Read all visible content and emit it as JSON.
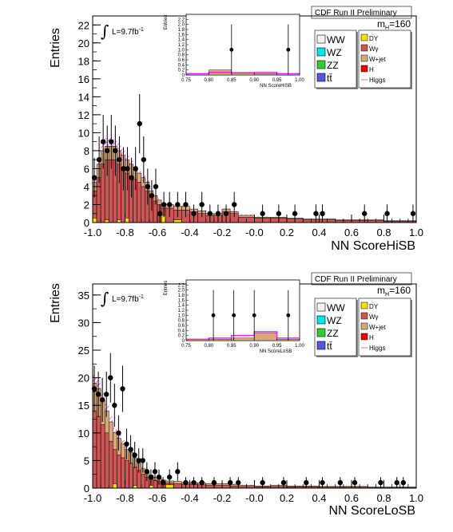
{
  "chart_data": [
    {
      "type": "bar",
      "header": "CDF Run II Preliminary",
      "mass_label": "m_H=160",
      "lumi_label": "L=9.7fb",
      "lumi_exp": "-1",
      "xlabel": "NN ScoreHiSB",
      "ylabel": "Entries",
      "xlim": [
        -1.0,
        1.0
      ],
      "ylim": [
        0,
        23
      ],
      "yticks": [
        0,
        2,
        4,
        6,
        8,
        10,
        12,
        14,
        16,
        18,
        20,
        22
      ],
      "xticks": [
        "-1.0",
        "-0.8",
        "-0.6",
        "-0.4",
        "-0.2",
        "-0.0",
        "0.2",
        "0.4",
        "0.6",
        "0.8",
        "1.0"
      ],
      "bin_edges": [
        -1.0,
        -0.975,
        -0.95,
        -0.925,
        -0.9,
        -0.875,
        -0.85,
        -0.825,
        -0.8,
        -0.775,
        -0.75,
        -0.725,
        -0.7,
        -0.675,
        -0.65,
        -0.625,
        -0.6,
        -0.575,
        -0.55,
        -0.5,
        -0.45,
        -0.4,
        -0.35,
        -0.3,
        -0.25,
        -0.2,
        -0.15,
        -0.1,
        0.0,
        0.1,
        0.2,
        0.3,
        0.4,
        0.5,
        0.6,
        0.7,
        0.8,
        0.9,
        1.0
      ],
      "bkg_total": [
        4.5,
        6.5,
        8.0,
        8.5,
        8.5,
        8.5,
        8.0,
        7.5,
        7.0,
        6.5,
        6.0,
        5.5,
        5.0,
        4.5,
        3.5,
        3.0,
        2.5,
        2.0,
        2.0,
        1.8,
        1.8,
        1.5,
        1.3,
        1.0,
        1.0,
        1.5,
        1.2,
        0.8,
        0.6,
        0.6,
        0.5,
        0.4,
        0.4,
        0.3,
        0.3,
        0.3,
        0.2,
        0.2
      ],
      "wgamma": [
        3.5,
        5.0,
        6.5,
        7.0,
        7.0,
        7.0,
        6.5,
        6.0,
        5.5,
        5.0,
        4.8,
        4.5,
        4.0,
        3.5,
        2.8,
        2.4,
        2.0,
        1.6,
        1.6,
        1.4,
        1.4,
        1.2,
        1.0,
        0.8,
        0.8,
        1.2,
        1.0,
        0.6,
        0.5,
        0.5,
        0.4,
        0.3,
        0.3,
        0.25,
        0.25,
        0.25,
        0.15,
        0.15
      ],
      "dy": [
        0.5,
        0.0,
        0.0,
        0.3,
        0.0,
        0.0,
        0.3,
        0.0,
        0.5,
        0.0,
        0.0,
        0.0,
        0.0,
        0.0,
        0.0,
        0.0,
        0.0,
        0.8,
        0.0,
        0.3,
        0.0,
        0.0,
        0.0,
        0.0,
        0.0,
        0.0,
        0.0,
        0.0,
        0.0,
        0.0,
        0.0,
        0.0,
        0.0,
        0.0,
        0.0,
        0.0,
        0.0,
        0.0
      ],
      "higgs": [
        5.2,
        7.3,
        8.9,
        9.4,
        9.4,
        9.3,
        8.8,
        8.2,
        7.6,
        7.0,
        6.4,
        5.9,
        5.3,
        4.8,
        3.8,
        3.2,
        2.7,
        2.2,
        2.1,
        1.9,
        1.9,
        1.6,
        1.4,
        1.1,
        1.1,
        1.6,
        1.3,
        0.9,
        0.7,
        0.6,
        0.5,
        0.4,
        0.4,
        0.3,
        0.3,
        0.3,
        0.2,
        0.2
      ],
      "data_points": [
        {
          "x": -0.99,
          "y": 5,
          "err": 2.2
        },
        {
          "x": -0.96,
          "y": 7,
          "err": 2.6
        },
        {
          "x": -0.935,
          "y": 9,
          "err": 3.0
        },
        {
          "x": -0.91,
          "y": 8,
          "err": 2.8
        },
        {
          "x": -0.885,
          "y": 9,
          "err": 3.0
        },
        {
          "x": -0.86,
          "y": 8,
          "err": 2.8
        },
        {
          "x": -0.835,
          "y": 7,
          "err": 2.6
        },
        {
          "x": -0.81,
          "y": 6,
          "err": 2.4
        },
        {
          "x": -0.785,
          "y": 6,
          "err": 2.4
        },
        {
          "x": -0.76,
          "y": 5,
          "err": 2.2
        },
        {
          "x": -0.735,
          "y": 6,
          "err": 2.4
        },
        {
          "x": -0.71,
          "y": 11,
          "err": 3.3
        },
        {
          "x": -0.685,
          "y": 7,
          "err": 2.6
        },
        {
          "x": -0.66,
          "y": 4,
          "err": 2.0
        },
        {
          "x": -0.635,
          "y": 3,
          "err": 1.7
        },
        {
          "x": -0.61,
          "y": 4,
          "err": 2.0
        },
        {
          "x": -0.585,
          "y": 1,
          "err": 1.0
        },
        {
          "x": -0.56,
          "y": 2,
          "err": 1.4
        },
        {
          "x": -0.525,
          "y": 2,
          "err": 1.4
        },
        {
          "x": -0.475,
          "y": 2,
          "err": 1.4
        },
        {
          "x": -0.425,
          "y": 2,
          "err": 1.4
        },
        {
          "x": -0.375,
          "y": 1,
          "err": 1.0
        },
        {
          "x": -0.325,
          "y": 2,
          "err": 1.4
        },
        {
          "x": -0.275,
          "y": 1,
          "err": 1.0
        },
        {
          "x": -0.225,
          "y": 1,
          "err": 1.0
        },
        {
          "x": -0.175,
          "y": 1,
          "err": 1.0
        },
        {
          "x": -0.125,
          "y": 2,
          "err": 1.4
        },
        {
          "x": 0.05,
          "y": 1,
          "err": 1.0
        },
        {
          "x": 0.15,
          "y": 1,
          "err": 1.0
        },
        {
          "x": 0.25,
          "y": 1,
          "err": 1.0
        },
        {
          "x": 0.38,
          "y": 1,
          "err": 1.0
        },
        {
          "x": 0.42,
          "y": 1,
          "err": 1.0
        },
        {
          "x": 0.68,
          "y": 1,
          "err": 1.0
        },
        {
          "x": 0.82,
          "y": 1,
          "err": 1.0
        },
        {
          "x": 0.98,
          "y": 1,
          "err": 1.0
        }
      ],
      "inset": {
        "xlabel": "NN ScoreHiSB",
        "ylabel": "Entries",
        "xlim": [
          0.75,
          1.0
        ],
        "ylim": [
          0,
          2.4
        ],
        "xticks": [
          "0.75",
          "0.80",
          "0.85",
          "0.90",
          "0.95",
          "1.00"
        ],
        "yticks": [
          "0",
          "0.2",
          "0.4",
          "0.6",
          "0.8",
          "1.0",
          "1.2",
          "1.4",
          "1.6",
          "1.8",
          "2.0",
          "2.2"
        ],
        "bin_edges": [
          0.75,
          0.8,
          0.85,
          0.9,
          0.95,
          1.0
        ],
        "bkg": [
          0.05,
          0.2,
          0.1,
          0.05,
          0.05
        ],
        "higgs_line": [
          0.05,
          0.1,
          0.08,
          0.1,
          0.05
        ],
        "points": [
          {
            "x": 0.85,
            "y": 1.0,
            "err": 1.0
          },
          {
            "x": 0.975,
            "y": 1.0,
            "err": 1.0
          }
        ]
      }
    },
    {
      "type": "bar",
      "header": "CDF Run II Preliminary",
      "mass_label": "m_H=160",
      "lumi_label": "L=9.7fb",
      "lumi_exp": "-1",
      "xlabel": "NN ScoreLoSB",
      "ylabel": "Entries",
      "xlim": [
        -1.0,
        1.0
      ],
      "ylim": [
        0,
        37
      ],
      "yticks": [
        0,
        5,
        10,
        15,
        20,
        25,
        30,
        35
      ],
      "xticks": [
        "-1.0",
        "-0.8",
        "-0.6",
        "-0.4",
        "-0.2",
        "-0.0",
        "0.2",
        "0.4",
        "0.6",
        "0.8",
        "1.0"
      ],
      "bin_edges": [
        -1.0,
        -0.975,
        -0.95,
        -0.925,
        -0.9,
        -0.875,
        -0.85,
        -0.825,
        -0.8,
        -0.775,
        -0.75,
        -0.725,
        -0.7,
        -0.675,
        -0.65,
        -0.625,
        -0.6,
        -0.575,
        -0.55,
        -0.5,
        -0.45,
        -0.4,
        -0.35,
        -0.3,
        -0.25,
        -0.2,
        -0.15,
        -0.1,
        0.0,
        0.1,
        0.2,
        0.3,
        0.4,
        0.5,
        0.6,
        0.7,
        0.8,
        0.9,
        1.0
      ],
      "bkg_total": [
        19.0,
        18.0,
        16.0,
        14.0,
        12.0,
        10.0,
        9.0,
        8.0,
        7.0,
        6.5,
        5.5,
        4.5,
        3.5,
        2.8,
        2.3,
        2.0,
        1.8,
        1.5,
        1.3,
        1.2,
        1.0,
        1.0,
        0.9,
        0.8,
        0.8,
        0.8,
        0.7,
        0.5,
        0.4,
        0.5,
        0.4,
        0.4,
        0.3,
        0.3,
        0.3,
        0.2,
        0.2,
        0.2
      ],
      "wgamma": [
        14.0,
        13.0,
        11.5,
        10.0,
        8.5,
        7.0,
        6.0,
        5.5,
        5.0,
        4.5,
        3.8,
        3.2,
        2.5,
        2.0,
        1.6,
        1.4,
        1.2,
        1.0,
        0.9,
        0.8,
        0.7,
        0.7,
        0.6,
        0.5,
        0.5,
        0.5,
        0.4,
        0.3,
        0.25,
        0.3,
        0.25,
        0.25,
        0.2,
        0.2,
        0.2,
        0.15,
        0.15,
        0.15
      ],
      "dy": [
        0.0,
        0.0,
        0.0,
        0.0,
        0.0,
        0.8,
        0.0,
        0.0,
        0.0,
        0.0,
        0.5,
        0.0,
        0.0,
        0.0,
        0.5,
        0.0,
        0.0,
        0.0,
        0.6,
        0.0,
        0.0,
        0.0,
        0.0,
        0.0,
        0.0,
        0.0,
        0.0,
        0.0,
        0.0,
        0.0,
        0.0,
        0.0,
        0.0,
        0.0,
        0.0,
        0.0,
        0.0,
        0.0
      ],
      "higgs": [
        20.5,
        19.5,
        17.3,
        15.2,
        13.0,
        10.9,
        9.8,
        8.7,
        7.6,
        7.0,
        5.9,
        4.8,
        3.8,
        3.0,
        2.5,
        2.1,
        1.9,
        1.6,
        1.4,
        1.3,
        1.1,
        1.1,
        1.0,
        0.9,
        0.9,
        0.9,
        0.8,
        0.6,
        0.5,
        0.55,
        0.45,
        0.45,
        0.35,
        0.35,
        0.3,
        0.2,
        0.2,
        0.2
      ],
      "data_points": [
        {
          "x": -0.99,
          "y": 18,
          "err": 4.2
        },
        {
          "x": -0.965,
          "y": 17,
          "err": 4.1
        },
        {
          "x": -0.94,
          "y": 16,
          "err": 4.0
        },
        {
          "x": -0.915,
          "y": 17,
          "err": 4.1
        },
        {
          "x": -0.89,
          "y": 20,
          "err": 4.5
        },
        {
          "x": -0.865,
          "y": 15,
          "err": 3.9
        },
        {
          "x": -0.84,
          "y": 10,
          "err": 3.2
        },
        {
          "x": -0.815,
          "y": 18,
          "err": 4.2
        },
        {
          "x": -0.79,
          "y": 8,
          "err": 2.8
        },
        {
          "x": -0.765,
          "y": 7,
          "err": 2.6
        },
        {
          "x": -0.74,
          "y": 6,
          "err": 2.4
        },
        {
          "x": -0.715,
          "y": 5,
          "err": 2.2
        },
        {
          "x": -0.69,
          "y": 5,
          "err": 2.2
        },
        {
          "x": -0.665,
          "y": 3,
          "err": 1.7
        },
        {
          "x": -0.64,
          "y": 2,
          "err": 1.4
        },
        {
          "x": -0.615,
          "y": 3,
          "err": 1.7
        },
        {
          "x": -0.59,
          "y": 2,
          "err": 1.4
        },
        {
          "x": -0.565,
          "y": 1,
          "err": 1.0
        },
        {
          "x": -0.525,
          "y": 2,
          "err": 1.4
        },
        {
          "x": -0.475,
          "y": 3,
          "err": 1.7
        },
        {
          "x": -0.425,
          "y": 1,
          "err": 1.0
        },
        {
          "x": -0.375,
          "y": 1,
          "err": 1.0
        },
        {
          "x": -0.325,
          "y": 1,
          "err": 1.0
        },
        {
          "x": -0.25,
          "y": 1,
          "err": 1.0
        },
        {
          "x": -0.15,
          "y": 1,
          "err": 1.0
        },
        {
          "x": -0.1,
          "y": 1,
          "err": 1.0
        },
        {
          "x": 0.05,
          "y": 1,
          "err": 1.0
        },
        {
          "x": 0.18,
          "y": 1,
          "err": 1.0
        },
        {
          "x": 0.32,
          "y": 1,
          "err": 1.0
        },
        {
          "x": 0.42,
          "y": 1,
          "err": 1.0
        },
        {
          "x": 0.53,
          "y": 1,
          "err": 1.0
        },
        {
          "x": 0.62,
          "y": 1,
          "err": 1.0
        },
        {
          "x": 0.78,
          "y": 1,
          "err": 1.0
        },
        {
          "x": 0.88,
          "y": 1,
          "err": 1.0
        },
        {
          "x": 0.92,
          "y": 1,
          "err": 1.0
        }
      ],
      "inset": {
        "xlabel": "NN ScoreLoSB",
        "ylabel": "Entries",
        "xlim": [
          0.75,
          1.0
        ],
        "ylim": [
          0,
          2.4
        ],
        "xticks": [
          "0.75",
          "0.80",
          "0.85",
          "0.90",
          "0.95",
          "1.00"
        ],
        "yticks": [
          "0",
          "0.2",
          "0.4",
          "0.6",
          "0.8",
          "1.0",
          "1.2",
          "1.4",
          "1.6",
          "1.8",
          "2.0",
          "2.2"
        ],
        "bin_edges": [
          0.75,
          0.8,
          0.85,
          0.9,
          0.95,
          1.0
        ],
        "bkg": [
          0.05,
          0.05,
          0.1,
          0.3,
          0.05
        ],
        "higgs_line": [
          0.05,
          0.1,
          0.2,
          0.35,
          0.1
        ],
        "points": [
          {
            "x": 0.81,
            "y": 1.0,
            "err": 1.0
          },
          {
            "x": 0.855,
            "y": 1.0,
            "err": 1.0
          },
          {
            "x": 0.9,
            "y": 1.0,
            "err": 1.0
          },
          {
            "x": 0.975,
            "y": 1.0,
            "err": 1.0
          }
        ]
      }
    }
  ],
  "legend": {
    "left": [
      {
        "label": "WW",
        "color": "#f4f4f4"
      },
      {
        "label": "WZ",
        "color": "#00e5ee"
      },
      {
        "label": "ZZ",
        "color": "#33cc33"
      },
      {
        "label": "tt̄",
        "color": "#5555dd"
      }
    ],
    "right": [
      {
        "label": "DY",
        "color": "#f2e000"
      },
      {
        "label": "Wγ",
        "color": "#cc5555"
      },
      {
        "label": "W+jet",
        "color": "#d8a878"
      },
      {
        "label": "H",
        "color": "#ee0000"
      },
      {
        "label": "Higgs",
        "color": "#ff6699"
      }
    ]
  },
  "colors": {
    "wgamma": "#cc5555",
    "wjet": "#d8a878",
    "dy": "#f2e000",
    "higgs_hatch": "#ee22ee",
    "data": "#000000"
  }
}
